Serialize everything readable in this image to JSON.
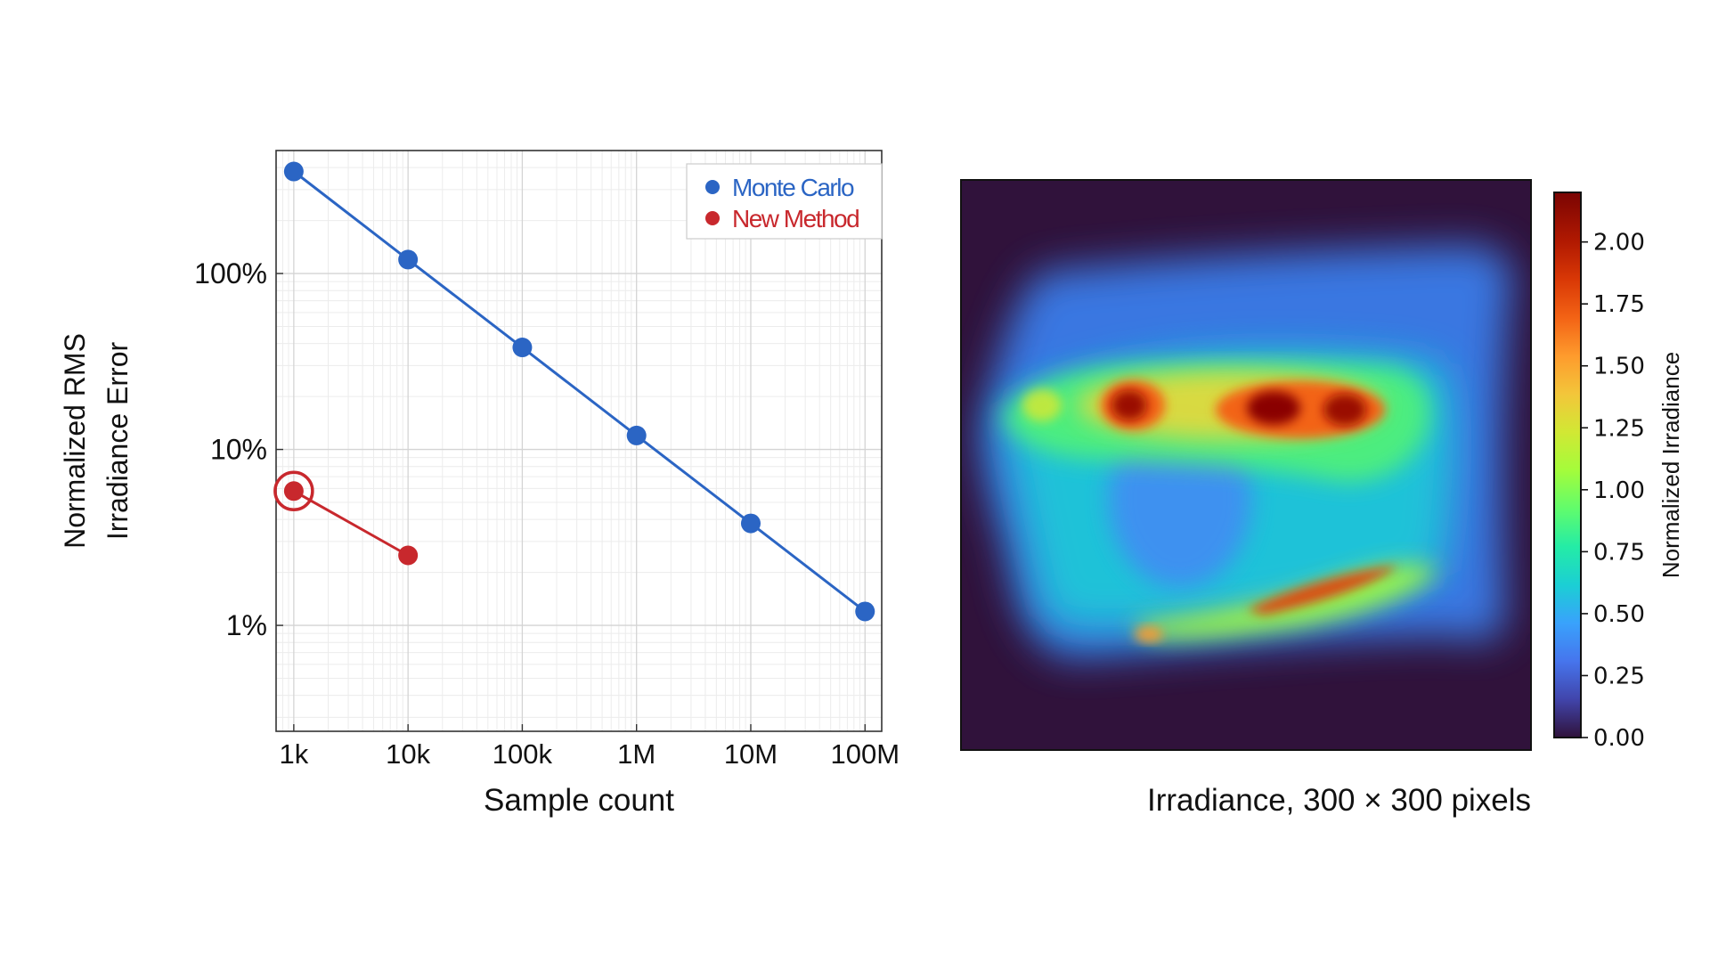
{
  "chart_data": [
    {
      "type": "line",
      "x_scale": "log",
      "y_scale": "log",
      "xlabel": "Sample count",
      "ylabel_lines": [
        "Normalized RMS",
        "Irradiance Error"
      ],
      "xlim": [
        700,
        140000000
      ],
      "ylim": [
        0.25,
        500
      ],
      "x_ticks": [
        {
          "value": 1000,
          "label": "1k"
        },
        {
          "value": 10000,
          "label": "10k"
        },
        {
          "value": 100000,
          "label": "100k"
        },
        {
          "value": 1000000,
          "label": "1M"
        },
        {
          "value": 10000000,
          "label": "10M"
        },
        {
          "value": 100000000,
          "label": "100M"
        }
      ],
      "y_ticks": [
        {
          "value": 1,
          "label": "1%"
        },
        {
          "value": 10,
          "label": "10%"
        },
        {
          "value": 100,
          "label": "100%"
        }
      ],
      "grid": true,
      "legend_position": "top-right",
      "series": [
        {
          "name": "Monte Carlo",
          "color": "#2b65c4",
          "x": [
            1000,
            10000,
            100000,
            1000000,
            10000000,
            100000000
          ],
          "y": [
            380,
            120,
            38,
            12,
            3.8,
            1.2
          ]
        },
        {
          "name": "New Method",
          "color": "#c8282d",
          "x": [
            1000,
            10000
          ],
          "y": [
            5.8,
            2.5
          ],
          "highlighted_point_index": 0
        }
      ]
    },
    {
      "type": "heatmap",
      "title": "Irradiance, 300 × 300 pixels",
      "colorbar_label": "Normalized Irradiance",
      "colormap": "turbo",
      "value_range": [
        0,
        2.2
      ],
      "colorbar_ticks": [
        "0.00",
        "0.25",
        "0.50",
        "0.75",
        "1.00",
        "1.25",
        "1.50",
        "1.75",
        "2.00"
      ],
      "background_color": "#30123b"
    }
  ]
}
